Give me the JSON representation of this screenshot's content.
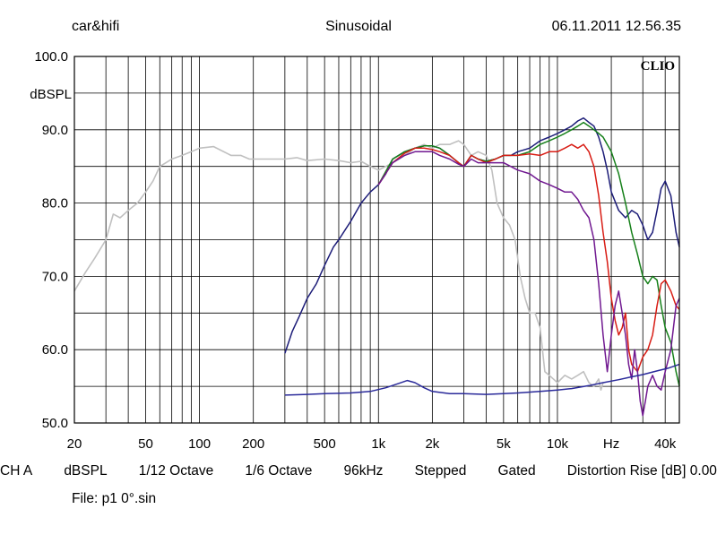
{
  "header": {
    "left": "car&hifi",
    "center": "Sinusoidal",
    "right": "06.11.2011 12.56.35"
  },
  "footer": {
    "items": [
      "CH A",
      "dBSPL",
      "1/12 Octave",
      "1/6 Octave",
      "96kHz",
      "Stepped",
      "Gated",
      "Distortion Rise [dB] 0.00"
    ]
  },
  "file_line": "File: p1 0°.sin",
  "chart_data": {
    "type": "line",
    "brand": "CLIO",
    "ylabel": "dBSPL",
    "x_scale": "log",
    "xlim": [
      20,
      48000
    ],
    "ylim": [
      50,
      100
    ],
    "y_ticks": [
      {
        "value": 100,
        "label": "100.0"
      },
      {
        "value": 90,
        "label": "90.0"
      },
      {
        "value": 80,
        "label": "80.0"
      },
      {
        "value": 70,
        "label": "70.0"
      },
      {
        "value": 60,
        "label": "60.0"
      },
      {
        "value": 50,
        "label": "50.0"
      }
    ],
    "x_ticks": [
      {
        "value": 20,
        "label": "20"
      },
      {
        "value": 50,
        "label": "50"
      },
      {
        "value": 100,
        "label": "100"
      },
      {
        "value": 200,
        "label": "200"
      },
      {
        "value": 500,
        "label": "500"
      },
      {
        "value": 1000,
        "label": "1k"
      },
      {
        "value": 2000,
        "label": "2k"
      },
      {
        "value": 5000,
        "label": "5k"
      },
      {
        "value": 10000,
        "label": "10k"
      },
      {
        "value": 20000,
        "label": "Hz"
      },
      {
        "value": 40000,
        "label": "40k"
      }
    ],
    "grid": true,
    "colors": {
      "grey": "#c0c0c0",
      "navy": "#1c1c78",
      "green": "#16801a",
      "red": "#d81c14",
      "purple": "#701890",
      "distortion": "#2a2a9a"
    },
    "series": [
      {
        "key": "grey",
        "x": [
          20,
          23,
          26,
          30,
          33,
          36,
          40,
          45,
          50,
          55,
          60,
          65,
          70,
          80,
          90,
          100,
          120,
          150,
          170,
          190,
          210,
          250,
          300,
          350,
          400,
          500,
          600,
          700,
          800,
          900,
          1000,
          1100,
          1200,
          1400,
          1600,
          1800,
          2000,
          2200,
          2500,
          2800,
          3000,
          3300,
          3600,
          4000,
          4300,
          4600,
          5000,
          5400,
          5800,
          6200,
          6600,
          7000,
          7500,
          8000,
          8500,
          9000,
          10000,
          11000,
          12000,
          13000,
          14000,
          15000,
          16000,
          17000,
          17500,
          18000
        ],
        "y": [
          68,
          70.5,
          72.5,
          75,
          78.5,
          78,
          79,
          80,
          81.5,
          83,
          85,
          85.5,
          86,
          86.5,
          87,
          87.5,
          87.7,
          86.5,
          86.5,
          86,
          86,
          86,
          86,
          86.2,
          85.8,
          86,
          85.8,
          85.5,
          85.7,
          85,
          84.5,
          85,
          85.5,
          86.5,
          87.5,
          88,
          87.5,
          88,
          88,
          88.5,
          88,
          86.5,
          87,
          86.5,
          84.5,
          80,
          78,
          77,
          75,
          70,
          67,
          65,
          65,
          63,
          57,
          56.5,
          55.5,
          56.5,
          56,
          56.5,
          57,
          55.5,
          55,
          56,
          54.5,
          55.5
        ]
      },
      {
        "key": "navy",
        "x": [
          300,
          330,
          360,
          400,
          450,
          500,
          560,
          600,
          700,
          800,
          900,
          1000,
          1100,
          1200,
          1400,
          1600,
          1800,
          2000,
          2200,
          2500,
          2800,
          3000,
          3300,
          3600,
          4000,
          4500,
          5000,
          5500,
          6000,
          7000,
          8000,
          9000,
          10000,
          11000,
          12000,
          13000,
          14000,
          15000,
          16000,
          17000,
          18000,
          19000,
          20000,
          22000,
          24000,
          26000,
          28000,
          30000,
          32000,
          34000,
          36000,
          38000,
          40000,
          43000,
          46000,
          48000
        ],
        "y": [
          59.5,
          62.5,
          64.5,
          67,
          69,
          71.5,
          74,
          75,
          77.5,
          80,
          81.5,
          82.5,
          84,
          86,
          87,
          87.5,
          87.8,
          87.8,
          87.5,
          86.5,
          85.5,
          85,
          86.5,
          86,
          85.7,
          86,
          86.5,
          86.5,
          87,
          87.5,
          88.5,
          89,
          89.5,
          90,
          90.5,
          91.2,
          91.6,
          91,
          90.5,
          89,
          87,
          84.5,
          81.5,
          79,
          78,
          79,
          78.5,
          77,
          75,
          76,
          79,
          82,
          83,
          81,
          76,
          74
        ]
      },
      {
        "key": "green",
        "x": [
          1000,
          1200,
          1400,
          1600,
          1800,
          2000,
          2200,
          2500,
          2800,
          3000,
          3300,
          3600,
          4000,
          4500,
          5000,
          6000,
          7000,
          8000,
          9000,
          10000,
          11000,
          12000,
          13000,
          14000,
          15000,
          16000,
          17000,
          18000,
          20000,
          22000,
          24000,
          26000,
          28000,
          30000,
          32000,
          34000,
          36000,
          38000,
          40000,
          43000,
          46000,
          48000
        ],
        "y": [
          82.5,
          86,
          87,
          87.5,
          87.8,
          87.8,
          87.5,
          86.5,
          85.5,
          85,
          86.5,
          86,
          85.7,
          86,
          86.5,
          86.5,
          87,
          88,
          88.5,
          89,
          89.5,
          90,
          90.5,
          91,
          90.5,
          90,
          89.5,
          89,
          87,
          84,
          80,
          76,
          73,
          70,
          69,
          70,
          69.5,
          66,
          63,
          61,
          57,
          55
        ]
      },
      {
        "key": "red",
        "x": [
          1000,
          1200,
          1400,
          1600,
          1800,
          2000,
          2200,
          2500,
          2800,
          3000,
          3300,
          3600,
          4000,
          4500,
          5000,
          6000,
          7000,
          8000,
          9000,
          10000,
          11000,
          12000,
          13000,
          14000,
          15000,
          16000,
          17000,
          18000,
          19000,
          20000,
          21000,
          22000,
          23000,
          24000,
          25000,
          26000,
          28000,
          30000,
          32000,
          34000,
          36000,
          38000,
          40000,
          43000,
          46000,
          48000
        ],
        "y": [
          82.5,
          85.5,
          86.8,
          87.5,
          87.5,
          87.3,
          87,
          86.5,
          85.5,
          85,
          86.5,
          86,
          85.5,
          86,
          86.5,
          86.5,
          86.7,
          86.5,
          87,
          87,
          87.5,
          88,
          87.5,
          88,
          87,
          85,
          81,
          76,
          72,
          67,
          64,
          62,
          63,
          65,
          60,
          58,
          57,
          59,
          60,
          62,
          66,
          69,
          69.5,
          68,
          66,
          65.5
        ]
      },
      {
        "key": "purple",
        "x": [
          1000,
          1200,
          1400,
          1600,
          1800,
          2000,
          2200,
          2500,
          2800,
          3000,
          3300,
          3600,
          4000,
          4500,
          5000,
          6000,
          7000,
          8000,
          9000,
          10000,
          11000,
          12000,
          13000,
          14000,
          15000,
          16000,
          17000,
          18000,
          19000,
          20000,
          21000,
          22000,
          23000,
          24000,
          25000,
          26000,
          27000,
          28000,
          29000,
          30000,
          31000,
          32000,
          34000,
          36000,
          38000,
          40000,
          43000,
          46000,
          48000
        ],
        "y": [
          82.5,
          85.5,
          86.5,
          87,
          87,
          87,
          86.5,
          86,
          85.3,
          85,
          86,
          85.5,
          85.5,
          85.5,
          85.5,
          84.5,
          84,
          83,
          82.5,
          82,
          81.5,
          81.5,
          80.5,
          79,
          78,
          75,
          69,
          62,
          57,
          62,
          66,
          68,
          65,
          62,
          58,
          56,
          60,
          57,
          53,
          51,
          53,
          55,
          56.5,
          55,
          54.5,
          57,
          60,
          66,
          67
        ]
      },
      {
        "key": "distortion",
        "x": [
          300,
          400,
          500,
          700,
          900,
          1100,
          1300,
          1450,
          1600,
          1800,
          2000,
          2500,
          3000,
          4000,
          5000,
          6000,
          8000,
          10000,
          12000,
          15000,
          18000,
          22000,
          26000,
          30000,
          36000,
          42000,
          48000
        ],
        "y": [
          53.8,
          53.9,
          54,
          54.1,
          54.3,
          54.8,
          55.4,
          55.8,
          55.5,
          54.8,
          54.3,
          54,
          54,
          53.9,
          54,
          54.1,
          54.3,
          54.5,
          54.7,
          55.1,
          55.5,
          55.9,
          56.3,
          56.6,
          57.1,
          57.5,
          58
        ]
      }
    ]
  }
}
